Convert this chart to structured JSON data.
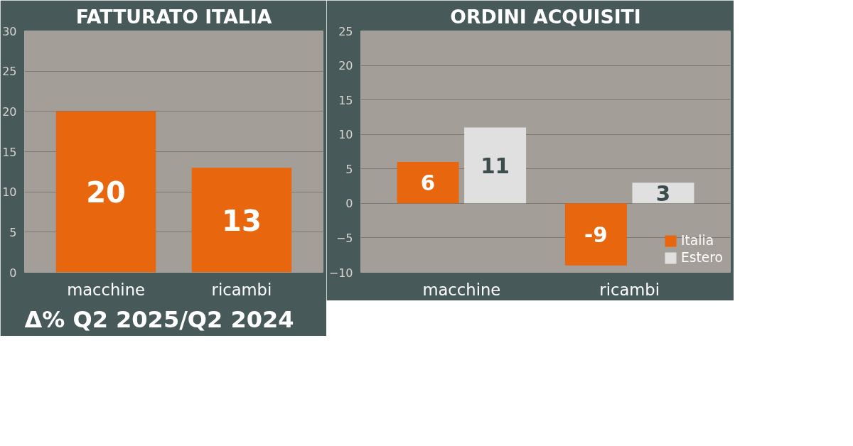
{
  "chart_data": [
    {
      "type": "bar",
      "title": "FATTURATO ITALIA",
      "categories": [
        "macchine",
        "ricambi"
      ],
      "values": [
        20,
        13
      ],
      "color": "#e8660d",
      "ylim": [
        0,
        30
      ],
      "yticks": [
        0,
        5,
        10,
        15,
        20,
        25,
        30
      ],
      "grid": "y",
      "data_labels": true,
      "annotations": [
        "Δ% Q2 2025/Q2 2024"
      ]
    },
    {
      "type": "bar",
      "title": "ORDINI ACQUISITI",
      "categories": [
        "macchine",
        "ricambi"
      ],
      "series": [
        {
          "name": "Italia",
          "color": "#e8660d",
          "values": [
            6,
            -9
          ]
        },
        {
          "name": "Estero",
          "color": "#e0e0e0",
          "values": [
            11,
            3
          ]
        }
      ],
      "ylim": [
        -10,
        25
      ],
      "yticks": [
        -10,
        -5,
        0,
        5,
        10,
        15,
        20,
        25
      ],
      "grid": "y",
      "data_labels": true,
      "legend": "bottom right"
    }
  ]
}
